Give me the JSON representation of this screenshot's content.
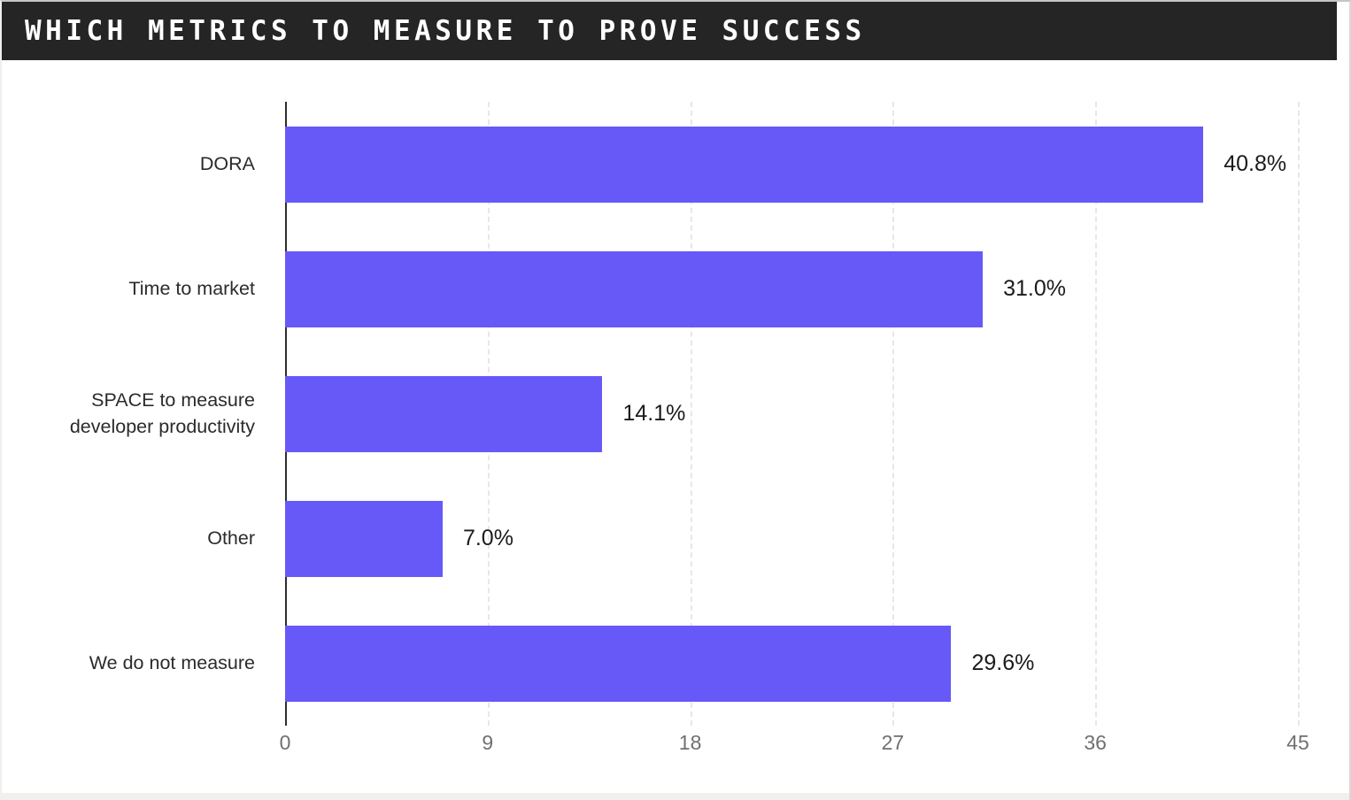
{
  "header": {
    "title": "WHICH METRICS TO MEASURE TO PROVE SUCCESS"
  },
  "colors": {
    "bar": "#6659f7",
    "header_bg": "#252525",
    "title_text": "#ffffff",
    "category_text": "#2b2b2b",
    "value_text": "#1b1b1b",
    "tick_text": "#707070",
    "gridline": "#e8e7e5",
    "axis_line": "#2e2e2e"
  },
  "chart_data": {
    "type": "bar",
    "orientation": "horizontal",
    "title": "WHICH METRICS TO MEASURE TO PROVE SUCCESS",
    "categories": [
      "DORA",
      "Time to market",
      "SPACE to measure\ndeveloper productivity",
      "Other",
      "We do not measure"
    ],
    "values": [
      40.8,
      31.0,
      14.1,
      7.0,
      29.6
    ],
    "value_labels": [
      "40.8%",
      "31.0%",
      "14.1%",
      "7.0%",
      "29.6%"
    ],
    "xlabel": "",
    "ylabel": "",
    "xlim": [
      0,
      45
    ],
    "tick_values": [
      0,
      9,
      18,
      27,
      36,
      45
    ],
    "tick_labels": [
      "0",
      "9",
      "18",
      "27",
      "36",
      "45"
    ],
    "grid": true,
    "gridline_style": "dashed",
    "bar_color": "#6659f7",
    "legend": null
  }
}
